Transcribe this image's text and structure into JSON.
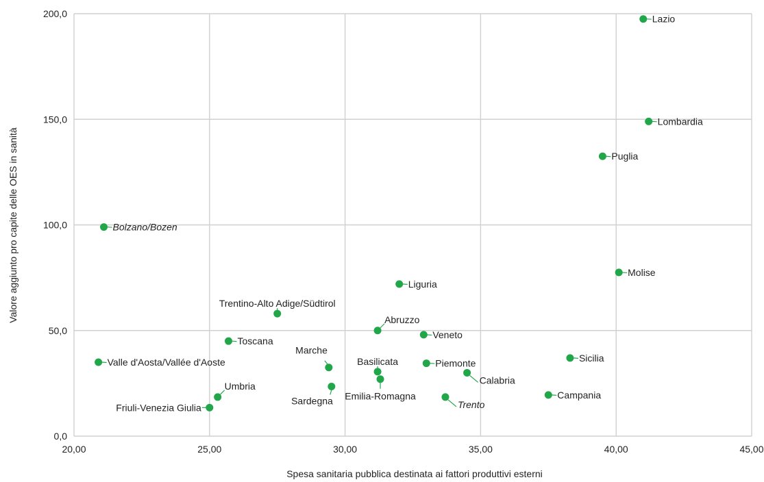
{
  "chart_data": {
    "type": "scatter",
    "xlabel": "Spesa sanitaria pubblica destinata ai fattori produttivi esterni",
    "ylabel": "Valore aggiunto pro capite delle OES in sanità",
    "xlim": [
      20,
      45
    ],
    "ylim": [
      0,
      200
    ],
    "x_ticks": [
      "20,00",
      "25,00",
      "30,00",
      "35,00",
      "40,00",
      "45,00"
    ],
    "y_ticks": [
      "0,0",
      "50,0",
      "100,0",
      "150,0",
      "200,0"
    ],
    "x_tick_values": [
      20,
      25,
      30,
      35,
      40,
      45
    ],
    "y_tick_values": [
      0,
      50,
      100,
      150,
      200
    ],
    "grid": true,
    "marker_color": "#22a64a",
    "grid_color": "#d0d0d0",
    "points": [
      {
        "label": "Lazio",
        "x": 41.0,
        "y": 197.5,
        "italic": false,
        "pos": "right"
      },
      {
        "label": "Lombardia",
        "x": 41.2,
        "y": 149.0,
        "italic": false,
        "pos": "right"
      },
      {
        "label": "Puglia",
        "x": 39.5,
        "y": 132.5,
        "italic": false,
        "pos": "right"
      },
      {
        "label": "Bolzano/Bozen",
        "x": 21.1,
        "y": 99.0,
        "italic": true,
        "pos": "right"
      },
      {
        "label": "Molise",
        "x": 40.1,
        "y": 77.5,
        "italic": false,
        "pos": "right"
      },
      {
        "label": "Liguria",
        "x": 32.0,
        "y": 72.0,
        "italic": false,
        "pos": "right"
      },
      {
        "label": "Trentino-Alto Adige/Südtirol",
        "x": 27.5,
        "y": 58.0,
        "italic": false,
        "pos": "above"
      },
      {
        "label": "Abruzzo",
        "x": 31.2,
        "y": 50.0,
        "italic": false,
        "pos": "above-right"
      },
      {
        "label": "Veneto",
        "x": 32.9,
        "y": 48.0,
        "italic": false,
        "pos": "right"
      },
      {
        "label": "Toscana",
        "x": 25.7,
        "y": 45.0,
        "italic": false,
        "pos": "right"
      },
      {
        "label": "Sicilia",
        "x": 38.3,
        "y": 37.0,
        "italic": false,
        "pos": "right"
      },
      {
        "label": "Valle d'Aosta/Vallée d'Aoste",
        "x": 20.9,
        "y": 35.0,
        "italic": false,
        "pos": "right"
      },
      {
        "label": "Piemonte",
        "x": 33.0,
        "y": 34.5,
        "italic": false,
        "pos": "right"
      },
      {
        "label": "Marche",
        "x": 29.4,
        "y": 32.5,
        "italic": false,
        "pos": "above-left"
      },
      {
        "label": "Basilicata",
        "x": 31.2,
        "y": 30.5,
        "italic": false,
        "pos": "above"
      },
      {
        "label": "Calabria",
        "x": 34.5,
        "y": 30.0,
        "italic": false,
        "pos": "below-right"
      },
      {
        "label": "Emilia-Romagna",
        "x": 31.3,
        "y": 27.0,
        "italic": false,
        "pos": "below"
      },
      {
        "label": "Sardegna",
        "x": 29.5,
        "y": 23.5,
        "italic": false,
        "pos": "below-left"
      },
      {
        "label": "Campania",
        "x": 37.5,
        "y": 19.5,
        "italic": false,
        "pos": "right"
      },
      {
        "label": "Umbria",
        "x": 25.3,
        "y": 18.5,
        "italic": false,
        "pos": "above-right"
      },
      {
        "label": "Trento",
        "x": 33.7,
        "y": 18.5,
        "italic": true,
        "pos": "below-right"
      },
      {
        "label": "Friuli-Venezia Giulia",
        "x": 25.0,
        "y": 13.5,
        "italic": false,
        "pos": "left"
      }
    ]
  }
}
